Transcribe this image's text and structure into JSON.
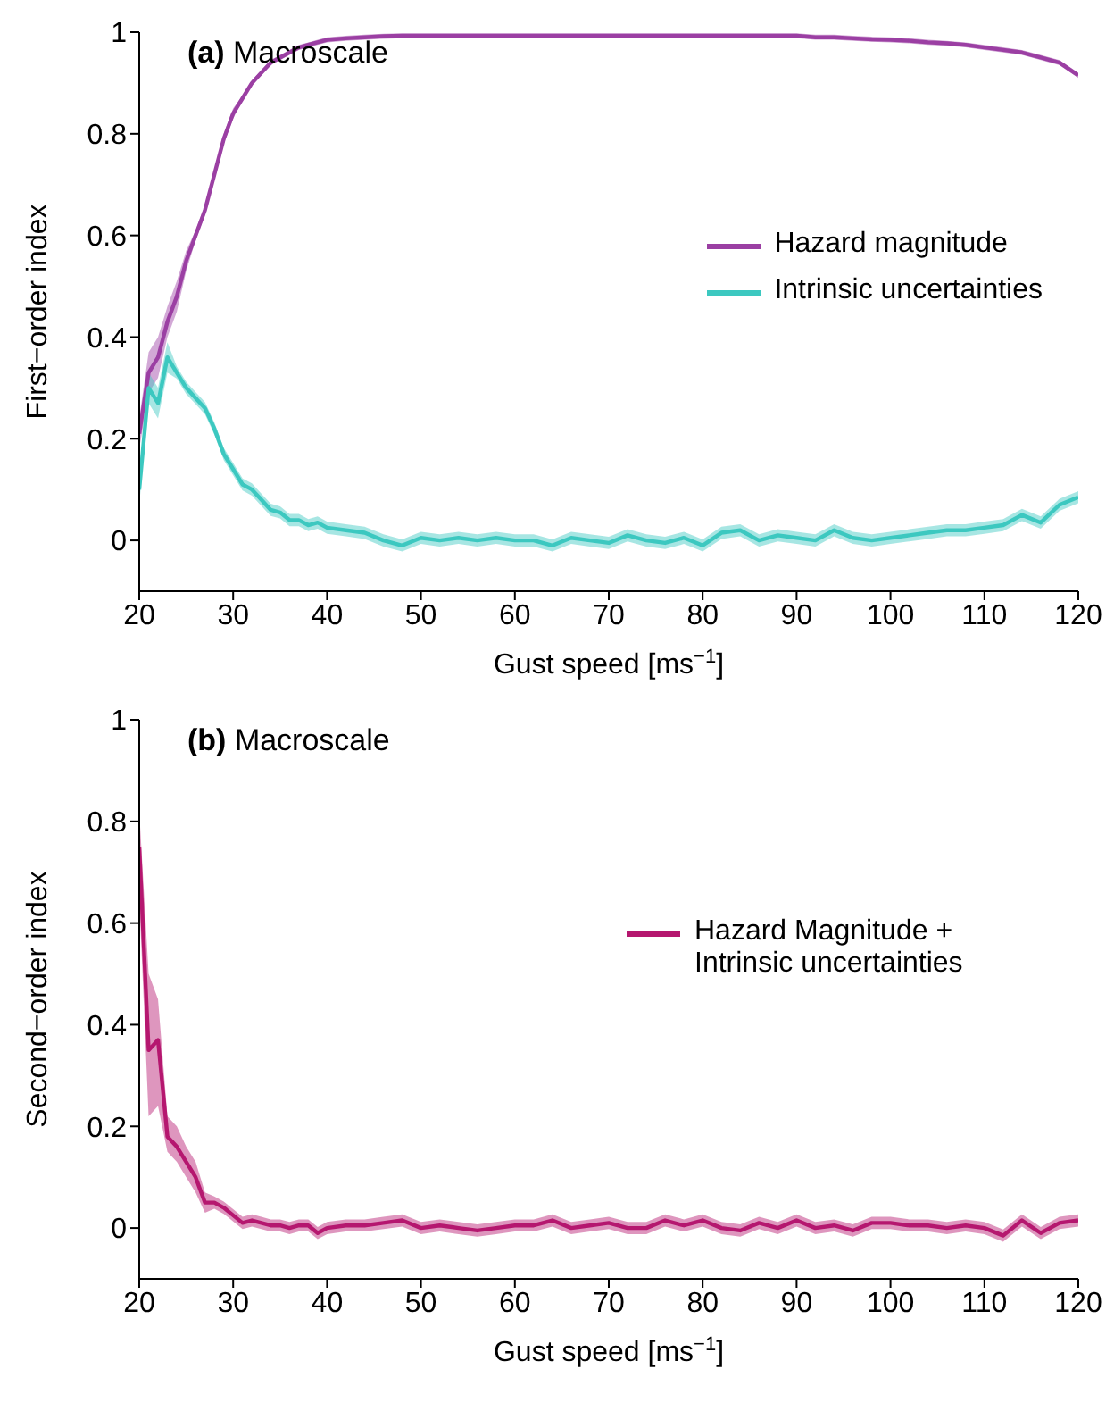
{
  "chart_data": [
    {
      "type": "line",
      "title": "(a) Macroscale",
      "xlabel": "Gust speed [ms$^{−1}$]",
      "ylabel": "First−order index",
      "xlim": [
        20,
        120
      ],
      "xticks": [
        20,
        30,
        40,
        50,
        60,
        70,
        80,
        90,
        100,
        110,
        120
      ],
      "ylim": [
        -0.1,
        1
      ],
      "yticks": [
        0,
        0.2,
        0.4,
        0.6,
        0.8,
        1
      ],
      "grid": false,
      "legend": "right",
      "marker": "none",
      "line_style": "solid",
      "x": [
        20,
        21,
        22,
        23,
        24,
        25,
        26,
        27,
        28,
        29,
        30,
        31,
        32,
        33,
        34,
        35,
        36,
        37,
        38,
        39,
        40,
        42,
        44,
        46,
        48,
        50,
        52,
        54,
        56,
        58,
        60,
        62,
        64,
        66,
        68,
        70,
        72,
        74,
        76,
        78,
        80,
        82,
        84,
        86,
        88,
        90,
        92,
        94,
        96,
        98,
        100,
        102,
        104,
        106,
        108,
        110,
        112,
        114,
        116,
        118,
        120
      ],
      "series": [
        {
          "name": "Hazard magnitude",
          "color": "#9b3fa3",
          "values": [
            0.21,
            0.33,
            0.36,
            0.43,
            0.48,
            0.55,
            0.6,
            0.65,
            0.72,
            0.79,
            0.84,
            0.87,
            0.9,
            0.92,
            0.94,
            0.95,
            0.96,
            0.97,
            0.975,
            0.98,
            0.985,
            0.988,
            0.99,
            0.992,
            0.993,
            0.993,
            0.993,
            0.993,
            0.993,
            0.993,
            0.993,
            0.993,
            0.993,
            0.993,
            0.993,
            0.993,
            0.993,
            0.993,
            0.993,
            0.993,
            0.993,
            0.993,
            0.993,
            0.993,
            0.993,
            0.993,
            0.99,
            0.99,
            0.988,
            0.986,
            0.985,
            0.983,
            0.98,
            0.978,
            0.975,
            0.97,
            0.965,
            0.96,
            0.95,
            0.94,
            0.915
          ],
          "lower": [
            0.18,
            0.29,
            0.32,
            0.4,
            0.45,
            0.53,
            0.59,
            0.64,
            0.71,
            0.78,
            0.83,
            0.865,
            0.895,
            0.915,
            0.935,
            0.945,
            0.955,
            0.965,
            0.97,
            0.975,
            0.98,
            0.983,
            0.985,
            0.987,
            0.988,
            0.988,
            0.988,
            0.988,
            0.988,
            0.988,
            0.988,
            0.988,
            0.988,
            0.988,
            0.988,
            0.988,
            0.988,
            0.988,
            0.988,
            0.988,
            0.988,
            0.988,
            0.988,
            0.988,
            0.988,
            0.988,
            0.985,
            0.985,
            0.983,
            0.981,
            0.98,
            0.978,
            0.975,
            0.973,
            0.97,
            0.965,
            0.96,
            0.955,
            0.945,
            0.935,
            0.91
          ],
          "upper": [
            0.24,
            0.37,
            0.4,
            0.46,
            0.51,
            0.57,
            0.61,
            0.66,
            0.73,
            0.8,
            0.85,
            0.875,
            0.905,
            0.925,
            0.945,
            0.955,
            0.965,
            0.975,
            0.98,
            0.985,
            0.99,
            0.993,
            0.995,
            0.997,
            0.998,
            0.998,
            0.998,
            0.998,
            0.998,
            0.998,
            0.998,
            0.998,
            0.998,
            0.998,
            0.998,
            0.998,
            0.998,
            0.998,
            0.998,
            0.998,
            0.998,
            0.998,
            0.998,
            0.998,
            0.998,
            0.998,
            0.995,
            0.995,
            0.993,
            0.991,
            0.99,
            0.988,
            0.985,
            0.983,
            0.98,
            0.975,
            0.97,
            0.965,
            0.955,
            0.945,
            0.92
          ]
        },
        {
          "name": "Intrinsic uncertainties",
          "color": "#3cc8c0",
          "values": [
            0.1,
            0.3,
            0.27,
            0.36,
            0.33,
            0.3,
            0.28,
            0.26,
            0.22,
            0.17,
            0.14,
            0.11,
            0.1,
            0.08,
            0.06,
            0.055,
            0.04,
            0.04,
            0.03,
            0.035,
            0.025,
            0.02,
            0.015,
            0,
            -0.01,
            0.005,
            0,
            0.005,
            0,
            0.005,
            0,
            0,
            -0.01,
            0.005,
            0,
            -0.005,
            0.01,
            0,
            -0.005,
            0.005,
            -0.01,
            0.015,
            0.02,
            0,
            0.01,
            0.005,
            0,
            0.02,
            0.005,
            0,
            0.005,
            0.01,
            0.015,
            0.02,
            0.02,
            0.025,
            0.03,
            0.05,
            0.035,
            0.07,
            0.085
          ],
          "lower": [
            0.07,
            0.27,
            0.24,
            0.33,
            0.318,
            0.288,
            0.268,
            0.248,
            0.208,
            0.158,
            0.128,
            0.098,
            0.088,
            0.068,
            0.048,
            0.043,
            0.028,
            0.028,
            0.018,
            0.023,
            0.013,
            0.008,
            0.003,
            -0.012,
            -0.022,
            -0.007,
            -0.012,
            -0.007,
            -0.012,
            -0.007,
            -0.012,
            -0.012,
            -0.022,
            -0.007,
            -0.012,
            -0.017,
            -0.002,
            -0.012,
            -0.017,
            -0.007,
            -0.022,
            0.003,
            0.008,
            -0.012,
            -0.002,
            -0.007,
            -0.012,
            0.008,
            -0.007,
            -0.012,
            -0.007,
            -0.002,
            0.003,
            0.008,
            0.008,
            0.013,
            0.018,
            0.038,
            0.023,
            0.058,
            0.073
          ],
          "upper": [
            0.13,
            0.33,
            0.3,
            0.39,
            0.342,
            0.312,
            0.292,
            0.272,
            0.232,
            0.182,
            0.152,
            0.122,
            0.112,
            0.092,
            0.072,
            0.067,
            0.052,
            0.052,
            0.042,
            0.047,
            0.037,
            0.032,
            0.027,
            0.012,
            0.002,
            0.017,
            0.012,
            0.017,
            0.012,
            0.017,
            0.012,
            0.012,
            0.002,
            0.017,
            0.012,
            0.007,
            0.022,
            0.012,
            0.007,
            0.017,
            0.002,
            0.027,
            0.032,
            0.012,
            0.022,
            0.017,
            0.012,
            0.032,
            0.017,
            0.012,
            0.017,
            0.022,
            0.027,
            0.032,
            0.032,
            0.037,
            0.042,
            0.062,
            0.047,
            0.082,
            0.097
          ]
        }
      ]
    },
    {
      "type": "line",
      "title": "(b) Macroscale",
      "xlabel": "Gust speed [ms$^{−1}$]",
      "ylabel": "Second−order index",
      "xlim": [
        20,
        120
      ],
      "xticks": [
        20,
        30,
        40,
        50,
        60,
        70,
        80,
        90,
        100,
        110,
        120
      ],
      "ylim": [
        -0.1,
        1
      ],
      "yticks": [
        0,
        0.2,
        0.4,
        0.6,
        0.8,
        1
      ],
      "grid": false,
      "legend": "right",
      "marker": "none",
      "line_style": "solid",
      "x": [
        20,
        21,
        22,
        23,
        24,
        25,
        26,
        27,
        28,
        29,
        30,
        31,
        32,
        33,
        34,
        35,
        36,
        37,
        38,
        39,
        40,
        42,
        44,
        46,
        48,
        50,
        52,
        54,
        56,
        58,
        60,
        62,
        64,
        66,
        68,
        70,
        72,
        74,
        76,
        78,
        80,
        82,
        84,
        86,
        88,
        90,
        92,
        94,
        96,
        98,
        100,
        102,
        104,
        106,
        108,
        110,
        112,
        114,
        116,
        118,
        120
      ],
      "series": [
        {
          "name": "Hazard Magnitude + Intrinsic uncertainties",
          "color": "#b5176f",
          "values": [
            0.75,
            0.35,
            0.37,
            0.18,
            0.16,
            0.13,
            0.1,
            0.05,
            0.05,
            0.04,
            0.025,
            0.01,
            0.015,
            0.01,
            0.005,
            0.005,
            0,
            0.005,
            0.005,
            -0.01,
            0,
            0.005,
            0.005,
            0.01,
            0.015,
            0,
            0.005,
            0,
            -0.005,
            0,
            0.005,
            0.005,
            0.015,
            0,
            0.005,
            0.01,
            0,
            0,
            0.015,
            0.005,
            0.015,
            0,
            -0.005,
            0.01,
            0,
            0.015,
            0,
            0.005,
            -0.005,
            0.01,
            0.01,
            0.005,
            0.005,
            0,
            0.005,
            0,
            -0.015,
            0.015,
            -0.01,
            0.01,
            0.015
          ],
          "lower": [
            0.65,
            0.22,
            0.24,
            0.15,
            0.13,
            0.1,
            0.07,
            0.03,
            0.038,
            0.028,
            0.013,
            -0.002,
            0.003,
            -0.002,
            -0.007,
            -0.007,
            -0.012,
            -0.007,
            -0.007,
            -0.022,
            -0.012,
            -0.007,
            -0.007,
            -0.002,
            0.003,
            -0.012,
            -0.007,
            -0.012,
            -0.017,
            -0.012,
            -0.007,
            -0.007,
            0.003,
            -0.012,
            -0.007,
            -0.002,
            -0.012,
            -0.012,
            0.003,
            -0.007,
            0.003,
            -0.012,
            -0.017,
            -0.002,
            -0.012,
            0.003,
            -0.012,
            -0.007,
            -0.017,
            -0.002,
            -0.002,
            -0.007,
            -0.007,
            -0.012,
            -0.007,
            -0.012,
            -0.027,
            0.003,
            -0.022,
            -0.002,
            0.003
          ],
          "upper": [
            0.82,
            0.5,
            0.45,
            0.22,
            0.2,
            0.16,
            0.13,
            0.07,
            0.062,
            0.052,
            0.037,
            0.022,
            0.027,
            0.022,
            0.017,
            0.017,
            0.012,
            0.017,
            0.017,
            0.002,
            0.012,
            0.017,
            0.017,
            0.022,
            0.027,
            0.012,
            0.017,
            0.012,
            0.007,
            0.012,
            0.017,
            0.017,
            0.027,
            0.012,
            0.017,
            0.022,
            0.012,
            0.012,
            0.027,
            0.017,
            0.027,
            0.012,
            0.007,
            0.022,
            0.012,
            0.027,
            0.012,
            0.017,
            0.007,
            0.022,
            0.022,
            0.017,
            0.017,
            0.012,
            0.017,
            0.012,
            -0.003,
            0.027,
            0.002,
            0.022,
            0.027
          ]
        }
      ]
    }
  ]
}
